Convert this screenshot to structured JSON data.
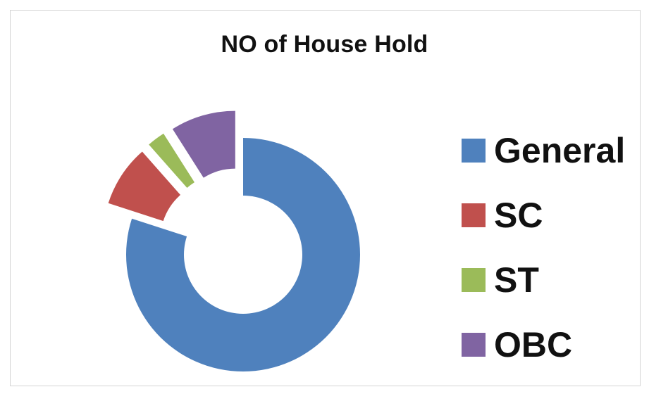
{
  "chart_data": {
    "type": "pie",
    "style": "doughnut-exploded",
    "title": "NO of House Hold",
    "legend_position": "right",
    "categories": [
      "General",
      "SC",
      "ST",
      "OBC"
    ],
    "values": [
      80,
      8.5,
      2.5,
      9
    ],
    "colors": [
      "#4f81bd",
      "#c0504d",
      "#9bbb59",
      "#8064a2"
    ]
  }
}
